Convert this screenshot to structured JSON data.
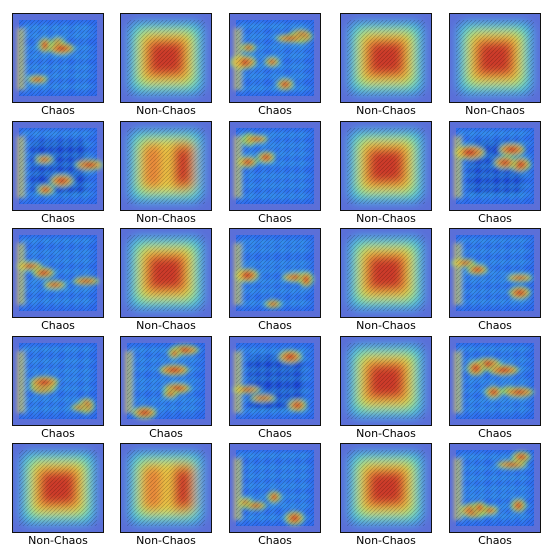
{
  "grid": {
    "rows": 5,
    "cols": 5,
    "tiles": [
      {
        "label": "Chaos",
        "kind": "chaos-grid"
      },
      {
        "label": "Non-Chaos",
        "kind": "non-chaos-square"
      },
      {
        "label": "Chaos",
        "kind": "chaos-scattered"
      },
      {
        "label": "Non-Chaos",
        "kind": "non-chaos-square"
      },
      {
        "label": "Non-Chaos",
        "kind": "non-chaos-square"
      },
      {
        "label": "Chaos",
        "kind": "chaos-blue-block"
      },
      {
        "label": "Non-Chaos",
        "kind": "non-chaos-split"
      },
      {
        "label": "Chaos",
        "kind": "chaos-grid"
      },
      {
        "label": "Non-Chaos",
        "kind": "non-chaos-square"
      },
      {
        "label": "Chaos",
        "kind": "chaos-blue-block"
      },
      {
        "label": "Chaos",
        "kind": "chaos-grid"
      },
      {
        "label": "Non-Chaos",
        "kind": "non-chaos-square"
      },
      {
        "label": "Chaos",
        "kind": "chaos-grid"
      },
      {
        "label": "Non-Chaos",
        "kind": "non-chaos-square"
      },
      {
        "label": "Chaos",
        "kind": "chaos-grid"
      },
      {
        "label": "Chaos",
        "kind": "chaos-grid"
      },
      {
        "label": "Chaos",
        "kind": "chaos-scattered"
      },
      {
        "label": "Chaos",
        "kind": "chaos-blue-block"
      },
      {
        "label": "Non-Chaos",
        "kind": "non-chaos-square"
      },
      {
        "label": "Chaos",
        "kind": "chaos-scattered"
      },
      {
        "label": "Non-Chaos",
        "kind": "non-chaos-square"
      },
      {
        "label": "Non-Chaos",
        "kind": "non-chaos-split"
      },
      {
        "label": "Chaos",
        "kind": "chaos-grid"
      },
      {
        "label": "Non-Chaos",
        "kind": "non-chaos-square"
      },
      {
        "label": "Chaos",
        "kind": "chaos-scattered"
      }
    ]
  },
  "palette": {
    "frame": "#5b6fd8",
    "deep_blue": "#1f3cd6",
    "blue": "#2f6cf0",
    "cyan": "#3fc6e8",
    "green": "#8fe06a",
    "yellow": "#e8d64a",
    "orange": "#e8883a",
    "red": "#cc3a2a",
    "caption": "#000000",
    "border": "#111111"
  }
}
